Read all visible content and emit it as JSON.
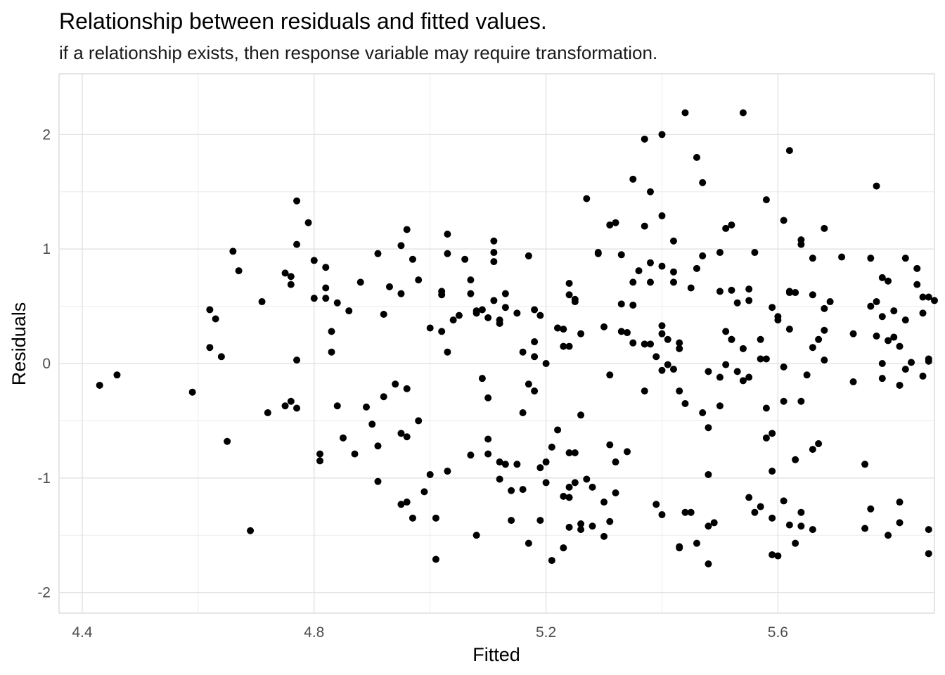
{
  "chart_data": {
    "type": "scatter",
    "title": "Relationship between residuals and fitted values.",
    "subtitle": "if a relationship exists, then response variable may require transformation.",
    "xlabel": "Fitted",
    "ylabel": "Residuals",
    "xlim": [
      4.36,
      5.87
    ],
    "ylim": [
      -2.18,
      2.53
    ],
    "x_ticks": [
      4.4,
      4.8,
      5.2,
      5.6
    ],
    "x_tick_labels": [
      "4.4",
      "4.8",
      "5.2",
      "5.6"
    ],
    "y_ticks": [
      -2,
      -1,
      0,
      1,
      2
    ],
    "y_tick_labels": [
      "-2",
      "-1",
      "0",
      "1",
      "2"
    ],
    "grid": true,
    "point_color": "#000000",
    "points": [
      [
        4.43,
        -0.19
      ],
      [
        4.46,
        -0.1
      ],
      [
        4.59,
        -0.25
      ],
      [
        4.62,
        0.47
      ],
      [
        4.62,
        0.14
      ],
      [
        4.63,
        0.39
      ],
      [
        4.64,
        0.06
      ],
      [
        4.65,
        -0.68
      ],
      [
        4.66,
        0.98
      ],
      [
        4.67,
        0.81
      ],
      [
        4.69,
        -1.46
      ],
      [
        4.71,
        0.54
      ],
      [
        4.72,
        -0.43
      ],
      [
        4.75,
        0.79
      ],
      [
        4.75,
        -0.37
      ],
      [
        4.76,
        0.76
      ],
      [
        4.76,
        0.69
      ],
      [
        4.76,
        -0.33
      ],
      [
        4.77,
        1.42
      ],
      [
        4.77,
        1.04
      ],
      [
        4.77,
        0.03
      ],
      [
        4.77,
        -0.39
      ],
      [
        4.79,
        1.23
      ],
      [
        4.8,
        0.57
      ],
      [
        4.8,
        0.9
      ],
      [
        4.81,
        -0.85
      ],
      [
        4.81,
        -0.79
      ],
      [
        4.82,
        0.84
      ],
      [
        4.82,
        0.66
      ],
      [
        4.82,
        0.57
      ],
      [
        4.83,
        0.28
      ],
      [
        4.83,
        0.1
      ],
      [
        4.84,
        -0.37
      ],
      [
        4.84,
        0.53
      ],
      [
        4.85,
        -0.65
      ],
      [
        4.86,
        0.46
      ],
      [
        4.87,
        -0.79
      ],
      [
        4.88,
        0.71
      ],
      [
        4.89,
        -0.38
      ],
      [
        4.9,
        -0.53
      ],
      [
        4.91,
        -0.72
      ],
      [
        4.91,
        0.96
      ],
      [
        4.91,
        -1.03
      ],
      [
        4.92,
        0.43
      ],
      [
        4.92,
        -0.29
      ],
      [
        4.93,
        0.67
      ],
      [
        4.94,
        -0.18
      ],
      [
        4.95,
        1.03
      ],
      [
        4.95,
        0.61
      ],
      [
        4.95,
        -1.23
      ],
      [
        4.95,
        -0.61
      ],
      [
        4.96,
        1.17
      ],
      [
        4.96,
        -1.21
      ],
      [
        4.96,
        -0.22
      ],
      [
        4.96,
        -0.64
      ],
      [
        4.97,
        0.91
      ],
      [
        4.97,
        -1.35
      ],
      [
        4.98,
        0.73
      ],
      [
        4.98,
        -0.5
      ],
      [
        4.99,
        -1.12
      ],
      [
        5.0,
        -0.97
      ],
      [
        5.0,
        0.31
      ],
      [
        5.01,
        -1.35
      ],
      [
        5.01,
        -1.71
      ],
      [
        5.02,
        0.28
      ],
      [
        5.02,
        0.63
      ],
      [
        5.02,
        0.6
      ],
      [
        5.03,
        0.96
      ],
      [
        5.03,
        -0.94
      ],
      [
        5.03,
        0.1
      ],
      [
        5.03,
        1.13
      ],
      [
        5.04,
        0.38
      ],
      [
        5.05,
        0.42
      ],
      [
        5.06,
        0.91
      ],
      [
        5.07,
        0.73
      ],
      [
        5.07,
        0.61
      ],
      [
        5.07,
        -0.8
      ],
      [
        5.08,
        0.46
      ],
      [
        5.08,
        0.44
      ],
      [
        5.08,
        -1.5
      ],
      [
        5.09,
        0.47
      ],
      [
        5.09,
        -0.13
      ],
      [
        5.1,
        0.4
      ],
      [
        5.1,
        -0.3
      ],
      [
        5.1,
        -0.66
      ],
      [
        5.1,
        -0.79
      ],
      [
        5.11,
        0.55
      ],
      [
        5.11,
        0.89
      ],
      [
        5.11,
        1.07
      ],
      [
        5.11,
        0.97
      ],
      [
        5.12,
        0.35
      ],
      [
        5.12,
        0.38
      ],
      [
        5.12,
        -0.86
      ],
      [
        5.12,
        -1.01
      ],
      [
        5.13,
        0.49
      ],
      [
        5.13,
        0.61
      ],
      [
        5.13,
        -0.88
      ],
      [
        5.14,
        -1.37
      ],
      [
        5.14,
        -1.11
      ],
      [
        5.15,
        0.44
      ],
      [
        5.15,
        -0.88
      ],
      [
        5.16,
        0.1
      ],
      [
        5.16,
        -1.1
      ],
      [
        5.16,
        -0.43
      ],
      [
        5.17,
        0.94
      ],
      [
        5.17,
        -1.57
      ],
      [
        5.17,
        -0.18
      ],
      [
        5.18,
        0.47
      ],
      [
        5.18,
        0.06
      ],
      [
        5.18,
        -0.24
      ],
      [
        5.18,
        0.19
      ],
      [
        5.19,
        0.42
      ],
      [
        5.19,
        -0.91
      ],
      [
        5.19,
        -1.37
      ],
      [
        5.2,
        0.0
      ],
      [
        5.2,
        -1.04
      ],
      [
        5.2,
        -0.86
      ],
      [
        5.21,
        -0.73
      ],
      [
        5.21,
        -1.72
      ],
      [
        5.22,
        0.31
      ],
      [
        5.22,
        0.31
      ],
      [
        5.22,
        -0.58
      ],
      [
        5.23,
        -1.16
      ],
      [
        5.23,
        -1.61
      ],
      [
        5.23,
        0.15
      ],
      [
        5.23,
        0.3
      ],
      [
        5.24,
        0.7
      ],
      [
        5.24,
        0.6
      ],
      [
        5.24,
        -0.78
      ],
      [
        5.24,
        -1.17
      ],
      [
        5.24,
        -1.08
      ],
      [
        5.24,
        0.15
      ],
      [
        5.24,
        -1.43
      ],
      [
        5.25,
        0.56
      ],
      [
        5.25,
        0.54
      ],
      [
        5.25,
        -0.78
      ],
      [
        5.25,
        -1.04
      ],
      [
        5.26,
        0.26
      ],
      [
        5.26,
        -1.45
      ],
      [
        5.26,
        -1.4
      ],
      [
        5.26,
        -0.45
      ],
      [
        5.27,
        -1.01
      ],
      [
        5.27,
        1.44
      ],
      [
        5.28,
        -1.08
      ],
      [
        5.28,
        -1.42
      ],
      [
        5.29,
        0.97
      ],
      [
        5.29,
        0.96
      ],
      [
        5.3,
        -1.21
      ],
      [
        5.3,
        -1.51
      ],
      [
        5.3,
        0.32
      ],
      [
        5.31,
        1.21
      ],
      [
        5.31,
        -0.71
      ],
      [
        5.31,
        -1.38
      ],
      [
        5.31,
        -0.1
      ],
      [
        5.32,
        -0.86
      ],
      [
        5.32,
        -1.13
      ],
      [
        5.32,
        1.23
      ],
      [
        5.33,
        0.95
      ],
      [
        5.33,
        0.52
      ],
      [
        5.33,
        0.28
      ],
      [
        5.34,
        0.27
      ],
      [
        5.34,
        -0.77
      ],
      [
        5.35,
        0.51
      ],
      [
        5.35,
        0.71
      ],
      [
        5.35,
        1.61
      ],
      [
        5.35,
        0.18
      ],
      [
        5.36,
        0.81
      ],
      [
        5.37,
        0.17
      ],
      [
        5.37,
        1.96
      ],
      [
        5.37,
        -0.24
      ],
      [
        5.37,
        1.2
      ],
      [
        5.38,
        0.71
      ],
      [
        5.38,
        0.88
      ],
      [
        5.38,
        0.17
      ],
      [
        5.38,
        1.5
      ],
      [
        5.39,
        0.06
      ],
      [
        5.39,
        -1.23
      ],
      [
        5.4,
        0.85
      ],
      [
        5.4,
        0.26
      ],
      [
        5.4,
        -0.06
      ],
      [
        5.4,
        0.33
      ],
      [
        5.4,
        2.0
      ],
      [
        5.4,
        1.29
      ],
      [
        5.4,
        -1.32
      ],
      [
        5.41,
        -0.01
      ],
      [
        5.41,
        0.21
      ],
      [
        5.42,
        -0.05
      ],
      [
        5.42,
        1.07
      ],
      [
        5.42,
        0.71
      ],
      [
        5.42,
        0.8
      ],
      [
        5.43,
        -1.61
      ],
      [
        5.43,
        -1.6
      ],
      [
        5.43,
        0.13
      ],
      [
        5.43,
        0.18
      ],
      [
        5.43,
        -0.24
      ],
      [
        5.44,
        2.19
      ],
      [
        5.44,
        -0.35
      ],
      [
        5.44,
        -1.3
      ],
      [
        5.45,
        0.66
      ],
      [
        5.45,
        -1.3
      ],
      [
        5.46,
        -1.57
      ],
      [
        5.46,
        1.8
      ],
      [
        5.46,
        0.83
      ],
      [
        5.47,
        1.58
      ],
      [
        5.47,
        0.94
      ],
      [
        5.47,
        -0.43
      ],
      [
        5.48,
        -0.97
      ],
      [
        5.48,
        -1.42
      ],
      [
        5.48,
        -0.07
      ],
      [
        5.48,
        -1.75
      ],
      [
        5.48,
        -0.56
      ],
      [
        5.49,
        -1.39
      ],
      [
        5.5,
        -0.37
      ],
      [
        5.5,
        0.63
      ],
      [
        5.5,
        -0.12
      ],
      [
        5.5,
        0.97
      ],
      [
        5.51,
        1.18
      ],
      [
        5.51,
        0.28
      ],
      [
        5.51,
        -0.01
      ],
      [
        5.52,
        0.21
      ],
      [
        5.52,
        0.64
      ],
      [
        5.52,
        0.21
      ],
      [
        5.52,
        1.21
      ],
      [
        5.53,
        0.53
      ],
      [
        5.53,
        -0.07
      ],
      [
        5.54,
        0.13
      ],
      [
        5.54,
        2.19
      ],
      [
        5.54,
        -0.15
      ],
      [
        5.55,
        0.55
      ],
      [
        5.55,
        -0.12
      ],
      [
        5.55,
        -1.17
      ],
      [
        5.55,
        0.65
      ],
      [
        5.56,
        0.97
      ],
      [
        5.56,
        -1.3
      ],
      [
        5.57,
        -1.25
      ],
      [
        5.57,
        0.04
      ],
      [
        5.57,
        0.21
      ],
      [
        5.58,
        1.43
      ],
      [
        5.58,
        0.04
      ],
      [
        5.58,
        -0.39
      ],
      [
        5.58,
        -0.65
      ],
      [
        5.59,
        -1.67
      ],
      [
        5.59,
        0.49
      ],
      [
        5.59,
        -0.94
      ],
      [
        5.59,
        -0.61
      ],
      [
        5.59,
        -1.35
      ],
      [
        5.6,
        -1.68
      ],
      [
        5.6,
        0.41
      ],
      [
        5.6,
        0.38
      ],
      [
        5.61,
        -1.2
      ],
      [
        5.61,
        -0.03
      ],
      [
        5.61,
        1.25
      ],
      [
        5.61,
        -0.33
      ],
      [
        5.62,
        0.3
      ],
      [
        5.62,
        1.86
      ],
      [
        5.62,
        0.63
      ],
      [
        5.62,
        -1.41
      ],
      [
        5.62,
        0.62
      ],
      [
        5.63,
        0.62
      ],
      [
        5.63,
        -0.84
      ],
      [
        5.63,
        -1.57
      ],
      [
        5.64,
        1.04
      ],
      [
        5.64,
        -0.33
      ],
      [
        5.64,
        -1.3
      ],
      [
        5.64,
        1.08
      ],
      [
        5.64,
        -1.42
      ],
      [
        5.65,
        -0.1
      ],
      [
        5.66,
        0.14
      ],
      [
        5.66,
        -1.45
      ],
      [
        5.66,
        0.92
      ],
      [
        5.66,
        0.6
      ],
      [
        5.66,
        -0.75
      ],
      [
        5.67,
        0.21
      ],
      [
        5.67,
        -0.7
      ],
      [
        5.68,
        0.48
      ],
      [
        5.68,
        0.03
      ],
      [
        5.68,
        0.29
      ],
      [
        5.69,
        0.54
      ],
      [
        5.68,
        1.18
      ],
      [
        5.71,
        0.93
      ],
      [
        5.73,
        -0.16
      ],
      [
        5.73,
        0.26
      ],
      [
        5.75,
        -0.88
      ],
      [
        5.75,
        -1.44
      ],
      [
        5.76,
        -1.27
      ],
      [
        5.76,
        0.92
      ],
      [
        5.76,
        0.5
      ],
      [
        5.77,
        0.54
      ],
      [
        5.77,
        1.55
      ],
      [
        5.77,
        0.24
      ],
      [
        5.78,
        0.0
      ],
      [
        5.78,
        0.75
      ],
      [
        5.78,
        0.41
      ],
      [
        5.78,
        -0.13
      ],
      [
        5.79,
        0.72
      ],
      [
        5.79,
        0.2
      ],
      [
        5.79,
        -1.5
      ],
      [
        5.8,
        0.46
      ],
      [
        5.8,
        0.23
      ],
      [
        5.81,
        0.15
      ],
      [
        5.81,
        -1.21
      ],
      [
        5.81,
        -1.39
      ],
      [
        5.81,
        -0.19
      ],
      [
        5.82,
        0.38
      ],
      [
        5.82,
        0.92
      ],
      [
        5.82,
        -0.05
      ],
      [
        5.83,
        0.01
      ],
      [
        5.84,
        0.83
      ],
      [
        5.84,
        0.69
      ],
      [
        5.85,
        0.44
      ],
      [
        5.85,
        0.58
      ],
      [
        5.85,
        -0.11
      ],
      [
        5.86,
        0.58
      ],
      [
        5.86,
        0.04
      ],
      [
        5.86,
        -1.45
      ],
      [
        5.86,
        -1.66
      ],
      [
        5.87,
        0.55
      ],
      [
        5.86,
        0.02
      ]
    ]
  }
}
